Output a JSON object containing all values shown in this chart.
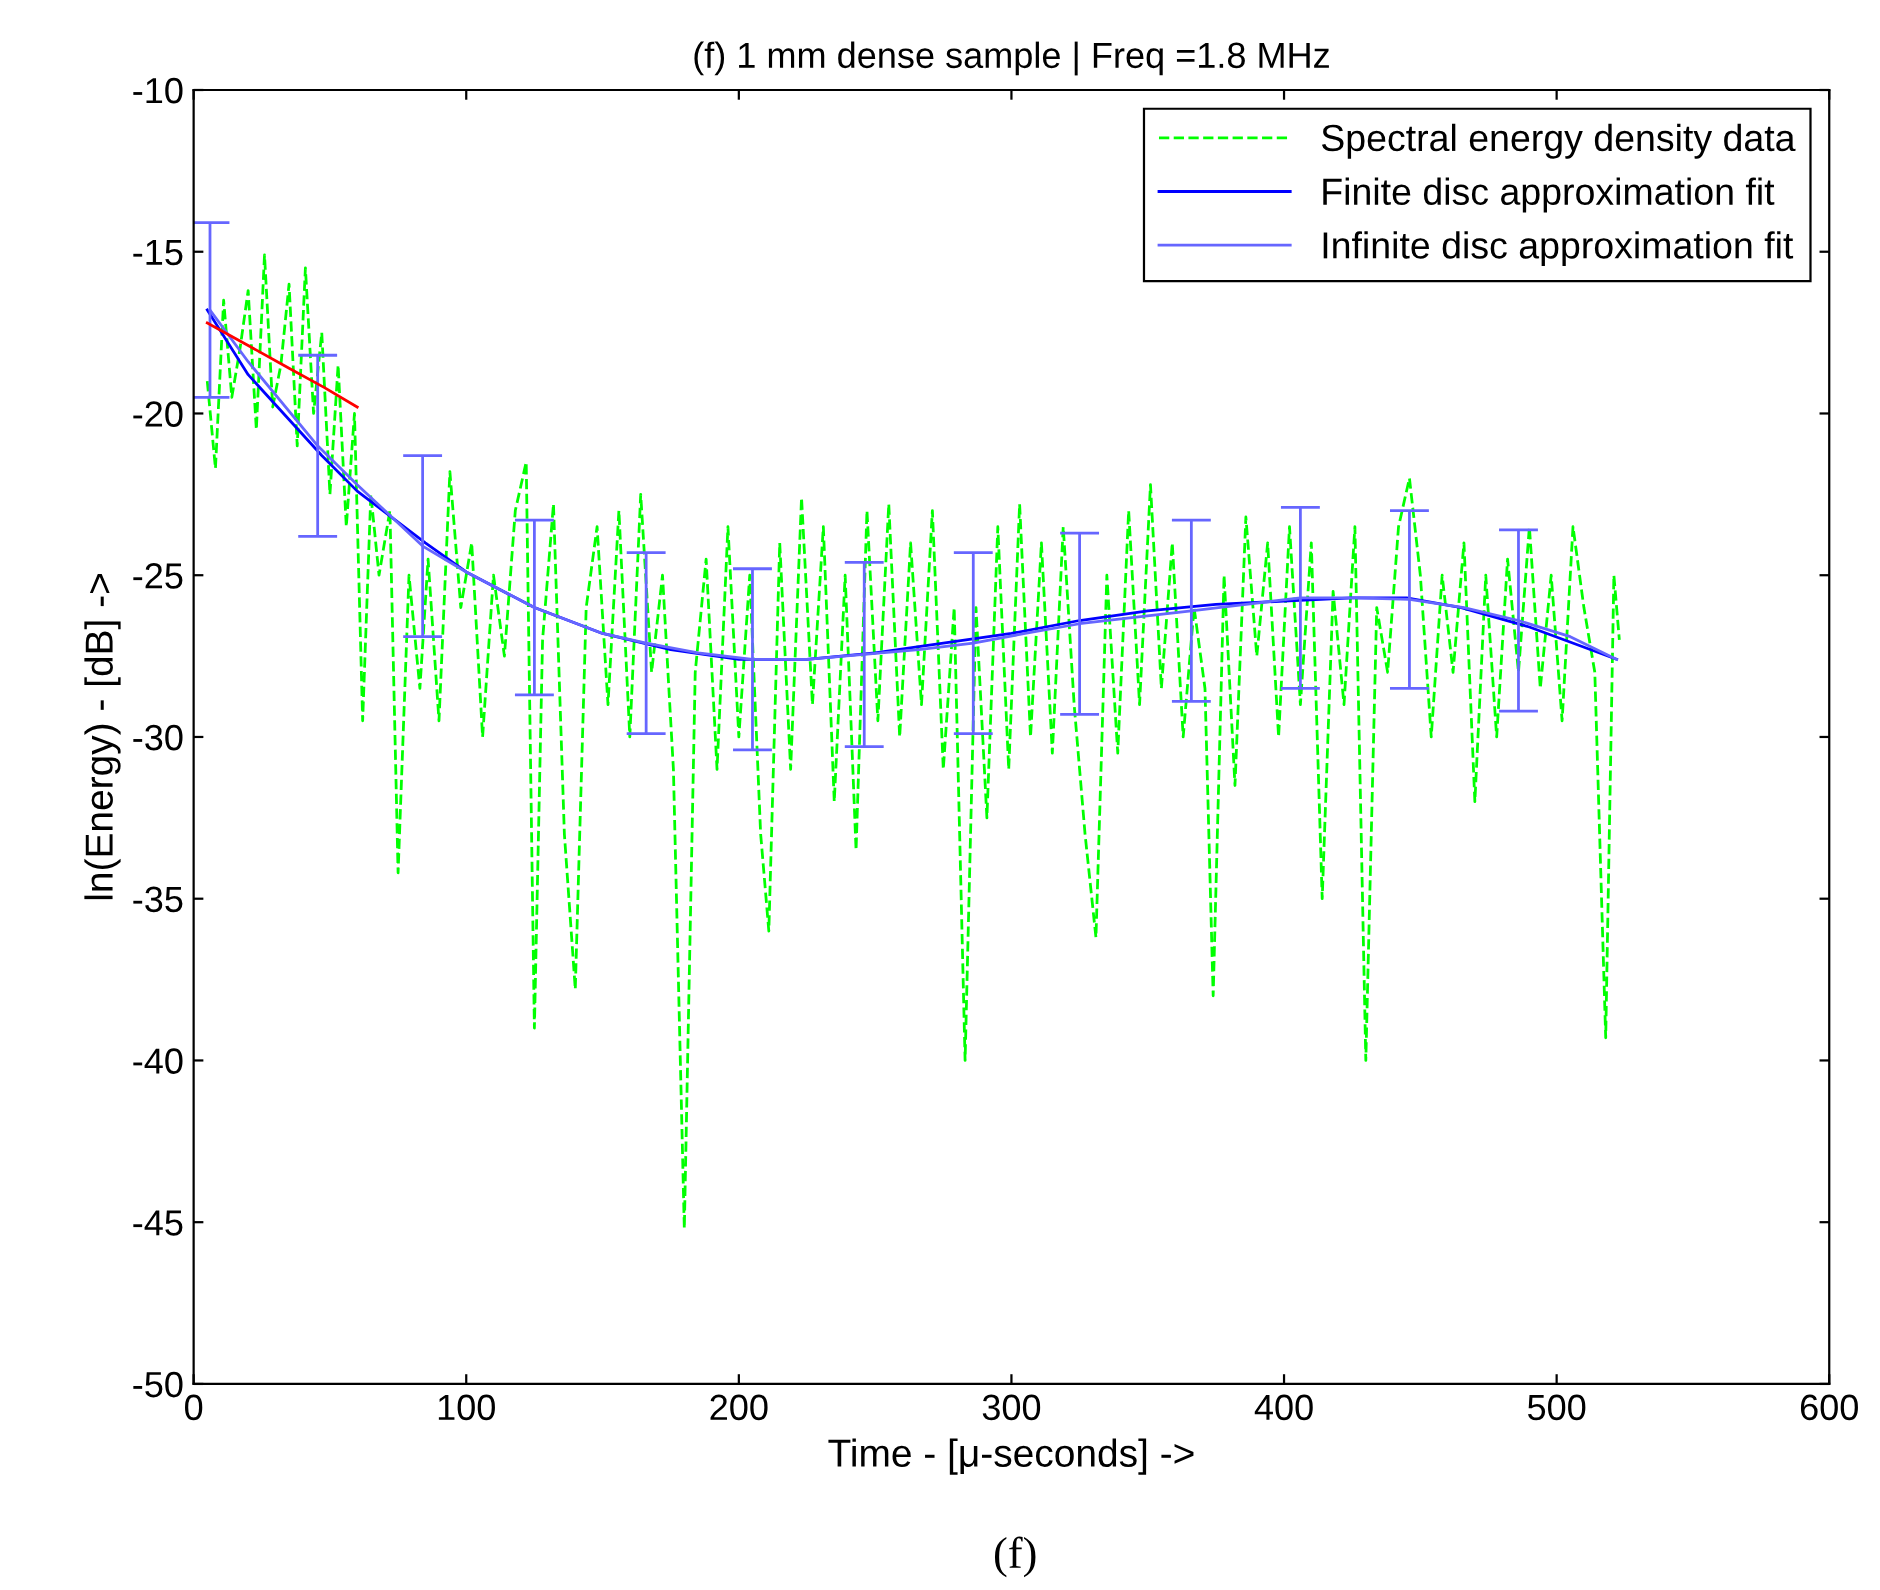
{
  "chart_data": {
    "type": "line",
    "title": "(f) 1 mm dense sample | Freq =1.8 MHz",
    "xlabel": "Time - [μ-seconds] ->",
    "ylabel": "ln(Energy) - [dB] ->",
    "annotations": [
      "(f)"
    ],
    "xlim": [
      0,
      600
    ],
    "xticks": [
      0,
      100,
      200,
      300,
      400,
      500,
      600
    ],
    "ylim": [
      -50,
      -10
    ],
    "yticks": [
      -50,
      -45,
      -40,
      -35,
      -30,
      -25,
      -20,
      -15,
      -10
    ],
    "grid": false,
    "legend": "top right",
    "marker": "none",
    "series": [
      {
        "name": "Spectral energy density data",
        "color": "#00ff00",
        "line_style": "dashed",
        "x": [
          5,
          8,
          11,
          14,
          17,
          20,
          23,
          26,
          29,
          32,
          35,
          38,
          41,
          44,
          47,
          50,
          53,
          56,
          59,
          62,
          65,
          68,
          72,
          75,
          79,
          83,
          86,
          90,
          94,
          98,
          102,
          106,
          110,
          114,
          118,
          122,
          125,
          128,
          132,
          136,
          140,
          144,
          148,
          152,
          156,
          160,
          164,
          168,
          172,
          176,
          180,
          184,
          188,
          192,
          196,
          200,
          204,
          208,
          211,
          215,
          219,
          223,
          227,
          231,
          235,
          239,
          243,
          247,
          251,
          255,
          259,
          263,
          267,
          271,
          275,
          279,
          283,
          287,
          291,
          295,
          299,
          303,
          307,
          311,
          315,
          319,
          323,
          327,
          331,
          335,
          339,
          343,
          347,
          351,
          355,
          359,
          363,
          367,
          371,
          374,
          378,
          382,
          386,
          390,
          394,
          398,
          402,
          406,
          410,
          414,
          418,
          422,
          426,
          430,
          434,
          438,
          442,
          446,
          450,
          454,
          458,
          462,
          466,
          470,
          474,
          478,
          482,
          486,
          490,
          494,
          498,
          502,
          506,
          510,
          514,
          518,
          521,
          523
        ],
        "values": [
          -19,
          -21.7,
          -16.5,
          -19.5,
          -18,
          -16.2,
          -20.5,
          -15.1,
          -19.8,
          -18.5,
          -16,
          -21,
          -15.5,
          -20,
          -17.5,
          -22.5,
          -18.5,
          -23.5,
          -20,
          -29.5,
          -22.5,
          -25,
          -23,
          -34.2,
          -25,
          -28.5,
          -24.5,
          -29.5,
          -21.8,
          -26,
          -24,
          -30,
          -25,
          -27.5,
          -23,
          -21.5,
          -39,
          -27,
          -22.8,
          -33,
          -37.8,
          -26,
          -23.5,
          -29,
          -23,
          -30,
          -22.5,
          -28,
          -25,
          -31,
          -45.2,
          -28,
          -24.5,
          -31,
          -23.5,
          -30,
          -25,
          -33,
          -36,
          -24,
          -31,
          -22.6,
          -29,
          -23.5,
          -32,
          -25,
          -33.5,
          -23,
          -29.5,
          -22.8,
          -30,
          -24,
          -29,
          -23,
          -31,
          -26,
          -40,
          -26,
          -32.5,
          -23.5,
          -31,
          -22.8,
          -30,
          -24,
          -30.5,
          -23.5,
          -29,
          -33,
          -36.2,
          -25,
          -30.5,
          -23,
          -29,
          -22.2,
          -28.5,
          -24,
          -30,
          -26,
          -28.5,
          -38,
          -25,
          -31.5,
          -23.2,
          -27.5,
          -24,
          -30,
          -23.5,
          -29,
          -24,
          -35,
          -25.5,
          -29,
          -23.5,
          -40,
          -26,
          -28,
          -23.5,
          -22,
          -25,
          -30,
          -25,
          -28,
          -24,
          -32,
          -25,
          -30,
          -24.5,
          -28,
          -23.5,
          -28.5,
          -25,
          -29.5,
          -23.5,
          -26,
          -28,
          -39.3,
          -25,
          -27
        ]
      },
      {
        "name": "Finite disc approximation fit",
        "color": "#0000ff",
        "line_style": "solid",
        "x": [
          5,
          20,
          47,
          60,
          85,
          100,
          125,
          150,
          175,
          200,
          225,
          250,
          275,
          300,
          325,
          350,
          375,
          400,
          425,
          445,
          465,
          490,
          522
        ],
        "values": [
          -16.8,
          -18.8,
          -21.3,
          -22.4,
          -24.0,
          -24.9,
          -26.0,
          -26.8,
          -27.3,
          -27.6,
          -27.6,
          -27.4,
          -27.1,
          -26.8,
          -26.4,
          -26.1,
          -25.9,
          -25.8,
          -25.7,
          -25.7,
          -26.0,
          -26.6,
          -27.6
        ]
      },
      {
        "name": "Infinite disc approximation fit",
        "color": "#6666ff",
        "line_style": "solid",
        "x": [
          6,
          20,
          45.5,
          60,
          84,
          100,
          125,
          150,
          166,
          185,
          205,
          225,
          246,
          266,
          286,
          305,
          325,
          345,
          366,
          386,
          406,
          426,
          446,
          466,
          486,
          505,
          522
        ],
        "values": [
          -16.8,
          -18.4,
          -21.0,
          -22.2,
          -24.1,
          -24.9,
          -26.0,
          -26.8,
          -27.1,
          -27.4,
          -27.6,
          -27.6,
          -27.45,
          -27.3,
          -27.1,
          -26.8,
          -26.5,
          -26.3,
          -26.1,
          -25.9,
          -25.7,
          -25.7,
          -25.75,
          -26.0,
          -26.4,
          -26.9,
          -27.6
        ],
        "errors": [
          [
            -19.5,
            -14.1
          ],
          null,
          [
            -23.8,
            -18.2
          ],
          null,
          [
            -26.9,
            -21.3
          ],
          null,
          [
            -28.7,
            -23.3
          ],
          null,
          [
            -29.9,
            -24.3
          ],
          null,
          [
            -30.4,
            -24.8
          ],
          null,
          [
            -30.3,
            -24.6
          ],
          null,
          [
            -29.9,
            -24.3
          ],
          null,
          [
            -29.3,
            -23.7
          ],
          null,
          [
            -28.9,
            -23.3
          ],
          null,
          [
            -28.5,
            -22.9
          ],
          null,
          [
            -28.5,
            -23.0
          ],
          null,
          [
            -29.2,
            -23.6
          ],
          null,
          null
        ]
      },
      {
        "color": "#ff0000",
        "line_style": "solid",
        "x": [
          5,
          20,
          35,
          48,
          60
        ],
        "values": [
          -17.2,
          -17.9,
          -18.6,
          -19.2,
          -19.8
        ]
      }
    ]
  }
}
